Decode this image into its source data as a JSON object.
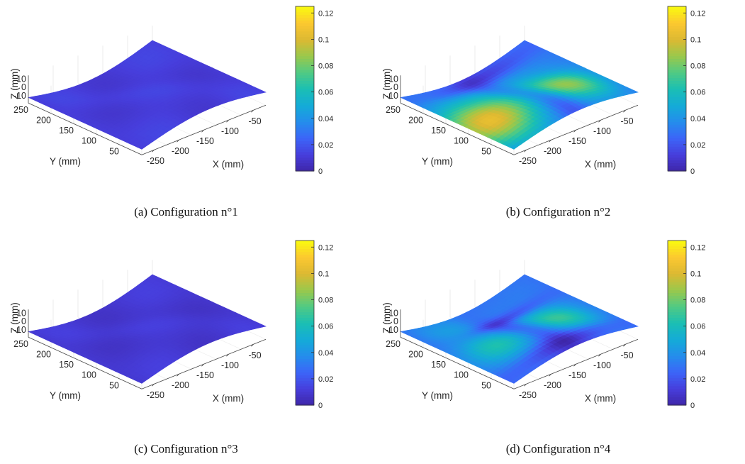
{
  "chart_data": [
    {
      "type": "surface",
      "caption": "(a) Configuration n°1",
      "xlabel": "X (mm)",
      "ylabel": "Y (mm)",
      "zlabel": "Z (mm)",
      "x_ticks": [
        "-250",
        "-200",
        "-150",
        "-100",
        "-50"
      ],
      "y_ticks": [
        "250",
        "200",
        "150",
        "100",
        "50"
      ],
      "z_ticks": [
        "10",
        "0",
        "-10"
      ],
      "colorbar": {
        "ticks": [
          "0.12",
          "0.1",
          "0.08",
          "0.06",
          "0.04",
          "0.02",
          "0"
        ],
        "range": [
          0,
          0.125
        ],
        "colormap": "parula"
      },
      "field": {
        "base": 0.012,
        "blobs": []
      }
    },
    {
      "type": "surface",
      "caption": "(b) Configuration n°2",
      "xlabel": "X (mm)",
      "ylabel": "Y (mm)",
      "zlabel": "Z (mm)",
      "x_ticks": [
        "-250",
        "-200",
        "-150",
        "-100",
        "-50"
      ],
      "y_ticks": [
        "250",
        "200",
        "150",
        "100",
        "50"
      ],
      "z_ticks": [
        "10",
        "0",
        "-10"
      ],
      "colorbar": {
        "ticks": [
          "0.12",
          "0.1",
          "0.08",
          "0.06",
          "0.04",
          "0.02",
          "0"
        ],
        "range": [
          0,
          0.125
        ],
        "colormap": "parula"
      },
      "field": {
        "base": 0.03,
        "blobs": [
          {
            "u": 0.13,
            "v": 0.35,
            "amp": 0.075,
            "su": 0.18,
            "sv": 0.22
          },
          {
            "u": 0.74,
            "v": 0.32,
            "amp": 0.055,
            "su": 0.16,
            "sv": 0.18
          },
          {
            "u": 0.45,
            "v": 0.65,
            "amp": 0.02,
            "su": 0.2,
            "sv": 0.2
          }
        ],
        "valleys": [
          {
            "u": 0.5,
            "v": 0.4,
            "amp": 0.025,
            "su": 0.07,
            "sv": 0.35
          },
          {
            "u": 0.55,
            "v": 0.92,
            "amp": 0.02,
            "su": 0.3,
            "sv": 0.08
          }
        ]
      }
    },
    {
      "type": "surface",
      "caption": "(c) Configuration n°3",
      "xlabel": "X (mm)",
      "ylabel": "Y (mm)",
      "zlabel": "Z (mm)",
      "x_ticks": [
        "-250",
        "-200",
        "-150",
        "-100",
        "-50"
      ],
      "y_ticks": [
        "250",
        "200",
        "150",
        "100",
        "50"
      ],
      "z_ticks": [
        "10",
        "0",
        "-10"
      ],
      "colorbar": {
        "ticks": [
          "0.12",
          "0.1",
          "0.08",
          "0.06",
          "0.04",
          "0.02",
          "0"
        ],
        "range": [
          0,
          0.125
        ],
        "colormap": "parula"
      },
      "field": {
        "base": 0.01,
        "blobs": []
      }
    },
    {
      "type": "surface",
      "caption": "(d) Configuration n°4",
      "xlabel": "X (mm)",
      "ylabel": "Y (mm)",
      "zlabel": "Z (mm)",
      "x_ticks": [
        "-250",
        "-200",
        "-150",
        "-100",
        "-50"
      ],
      "y_ticks": [
        "250",
        "200",
        "150",
        "100",
        "50"
      ],
      "z_ticks": [
        "10",
        "0",
        "-10"
      ],
      "colorbar": {
        "ticks": [
          "0.12",
          "0.1",
          "0.08",
          "0.06",
          "0.04",
          "0.02",
          "0"
        ],
        "range": [
          0,
          0.125
        ],
        "colormap": "parula"
      },
      "field": {
        "base": 0.028,
        "blobs": [
          {
            "u": 0.22,
            "v": 0.4,
            "amp": 0.038,
            "su": 0.14,
            "sv": 0.16
          },
          {
            "u": 0.72,
            "v": 0.38,
            "amp": 0.042,
            "su": 0.15,
            "sv": 0.18
          },
          {
            "u": 0.35,
            "v": 0.85,
            "amp": 0.015,
            "su": 0.2,
            "sv": 0.15
          }
        ],
        "valleys": [
          {
            "u": 0.48,
            "v": 0.45,
            "amp": 0.02,
            "su": 0.07,
            "sv": 0.3
          },
          {
            "u": 0.5,
            "v": 0.08,
            "amp": 0.02,
            "su": 0.3,
            "sv": 0.07
          },
          {
            "u": 0.6,
            "v": 0.7,
            "amp": 0.018,
            "su": 0.2,
            "sv": 0.06
          }
        ]
      }
    }
  ]
}
